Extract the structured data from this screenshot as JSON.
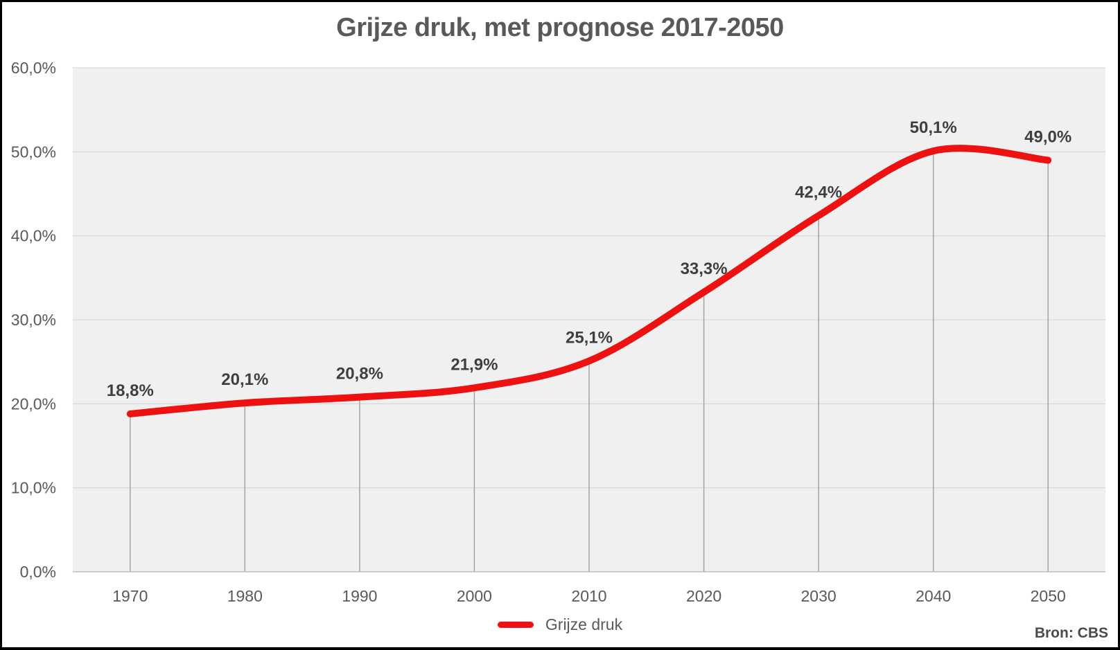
{
  "chart_data": {
    "type": "line",
    "title": "Grijze druk, met prognose 2017-2050",
    "categories": [
      "1970",
      "1980",
      "1990",
      "2000",
      "2010",
      "2020",
      "2030",
      "2040",
      "2050"
    ],
    "series": [
      {
        "name": "Grijze druk",
        "values": [
          18.8,
          20.1,
          20.8,
          21.9,
          25.1,
          33.3,
          42.4,
          50.1,
          49.0
        ],
        "labels": [
          "18,8%",
          "20,1%",
          "20,8%",
          "21,9%",
          "25,1%",
          "33,3%",
          "42,4%",
          "50,1%",
          "49,0%"
        ],
        "color": "#ee1111"
      }
    ],
    "ylim": [
      0,
      60
    ],
    "y_ticks": [
      {
        "value": 0,
        "label": "0,0%"
      },
      {
        "value": 10,
        "label": "10,0%"
      },
      {
        "value": 20,
        "label": "20,0%"
      },
      {
        "value": 30,
        "label": "30,0%"
      },
      {
        "value": 40,
        "label": "40,0%"
      },
      {
        "value": 50,
        "label": "50,0%"
      },
      {
        "value": 60,
        "label": "60,0%"
      }
    ],
    "grid": true,
    "drop_lines": true,
    "smooth": true,
    "legend_position": "bottom",
    "colors": {
      "plot_background": "#f0f0f0",
      "gridline": "#d9d9d9",
      "drop_line": "#a3a3a3",
      "axis_line": "#bfbfbf"
    }
  },
  "source": {
    "label": "Bron: CBS"
  }
}
